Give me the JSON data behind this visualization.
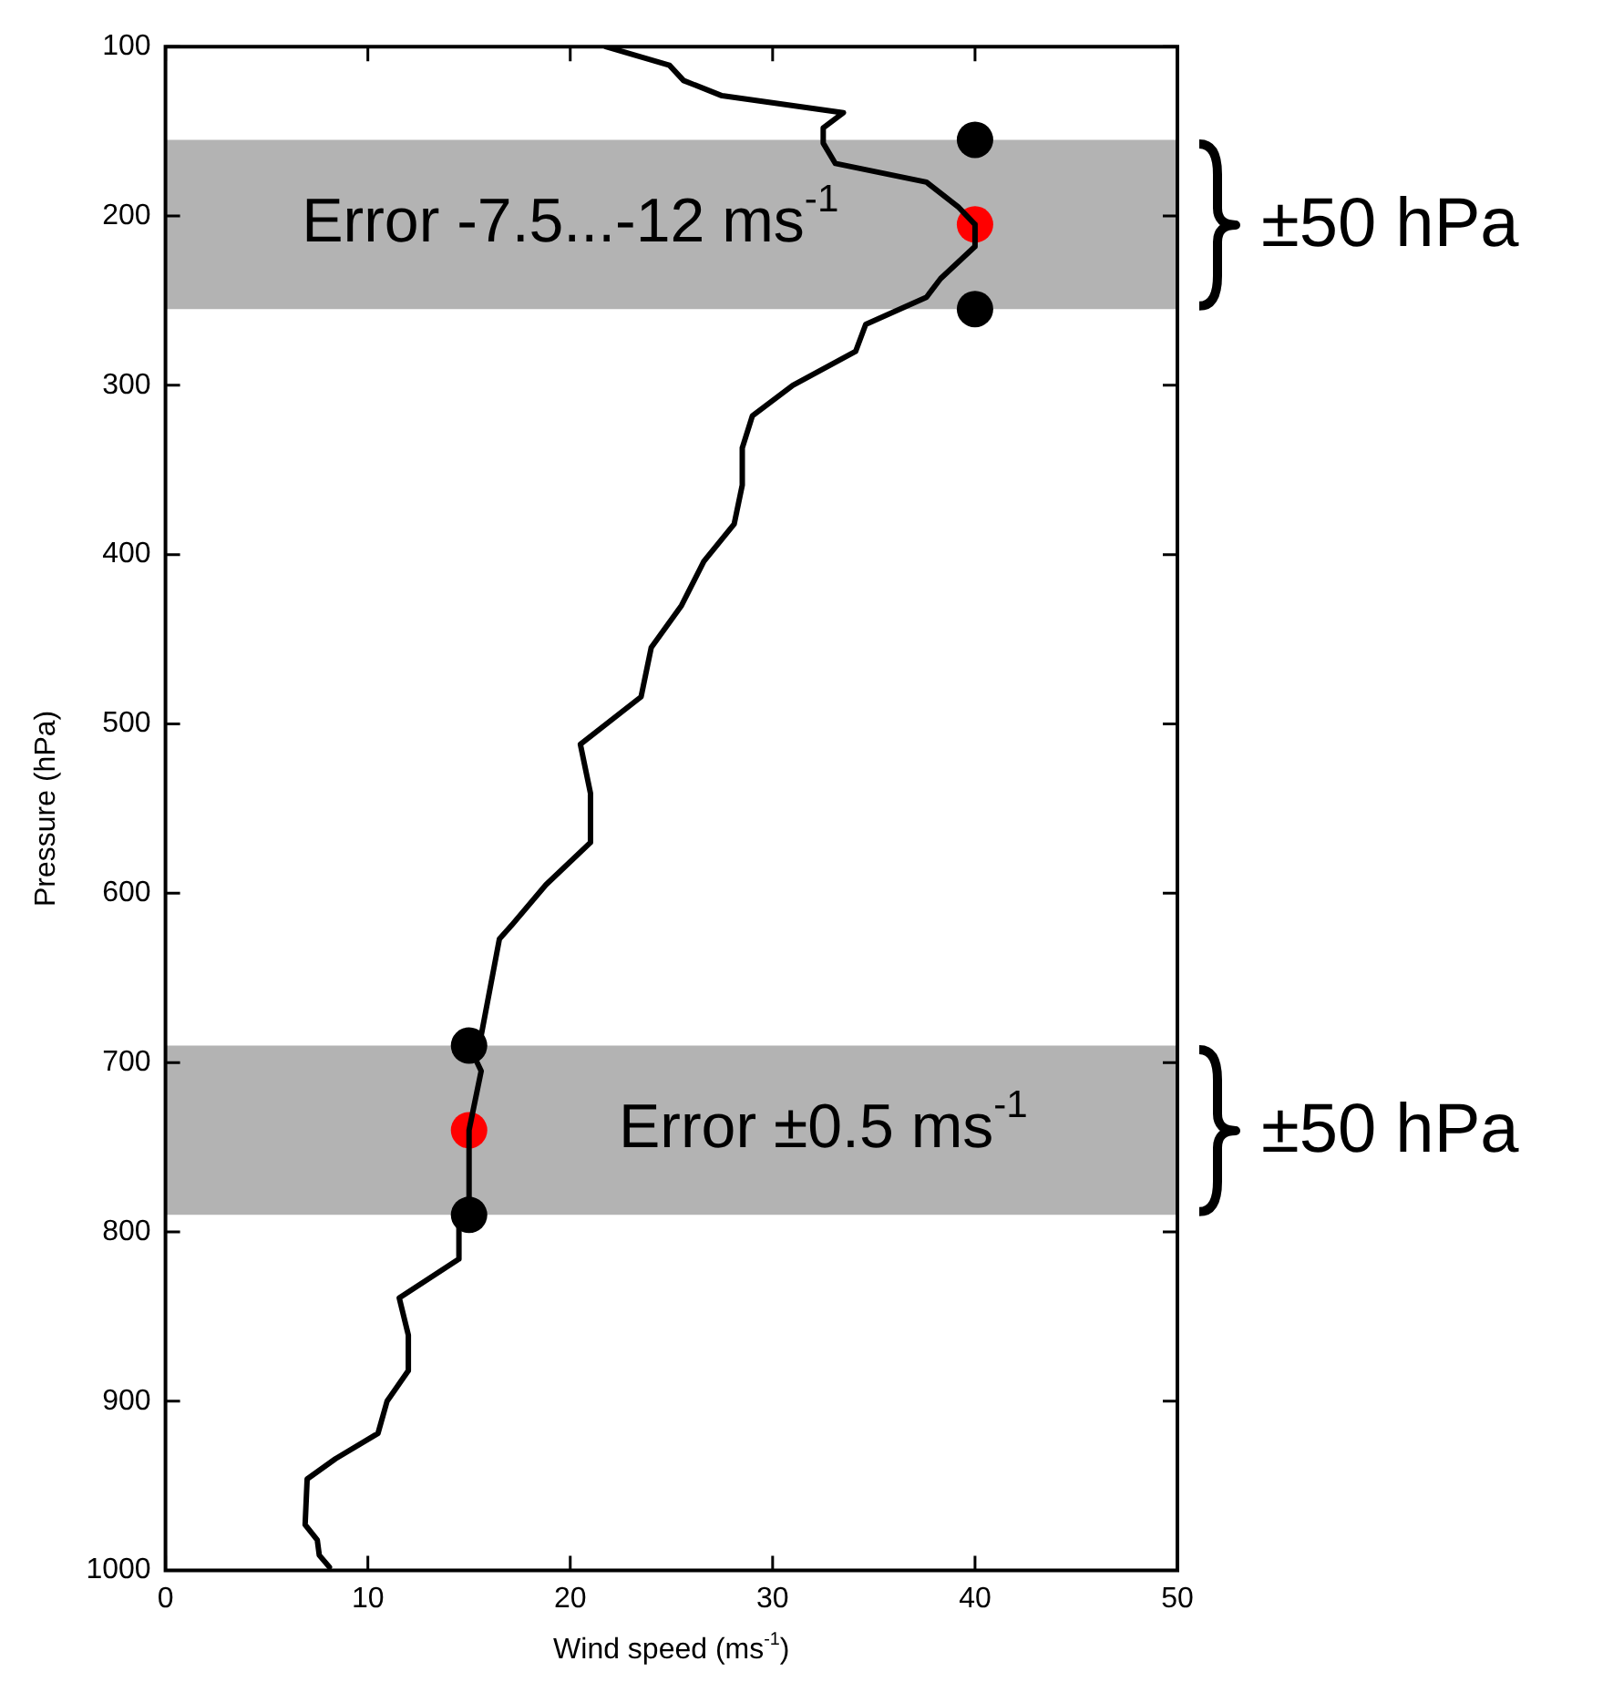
{
  "chart_data": {
    "type": "line",
    "xlabel": "Wind speed (ms$^{-1}$)",
    "ylabel": "Pressure (hPa)",
    "xlim": [
      0,
      50
    ],
    "xticks": [
      0,
      10,
      20,
      30,
      40,
      50
    ],
    "ylim": [
      1000,
      100
    ],
    "yticks": [
      100,
      200,
      300,
      400,
      500,
      600,
      700,
      800,
      900,
      1000
    ],
    "bands": [
      {
        "axis": "y",
        "from": 155,
        "to": 255,
        "label": "Error -7.5...-12 ms$^{-1}$",
        "color": "#b3b3b3"
      },
      {
        "axis": "y",
        "from": 690,
        "to": 790,
        "label": "Error ±0.5 ms$^{-1}$",
        "color": "#b3b3b3"
      }
    ],
    "annotations": [
      "±50 hPa",
      "±50 hPa"
    ],
    "series": [
      {
        "color": "#000000",
        "marker": "none",
        "x": [
          21.75,
          24.9,
          25.6,
          27.5,
          33.5,
          32.5,
          32.5,
          33.1,
          37.6,
          39.2,
          40,
          40,
          38.3,
          37.6,
          34.6,
          34.1,
          31,
          29,
          28.5,
          28.5,
          28.1,
          26.6,
          25.5,
          24,
          23.5,
          20.5,
          21,
          21,
          18.8,
          17.1,
          16.5,
          15.6,
          15,
          15.6,
          15,
          15,
          14.5,
          14.5,
          11.55,
          12,
          12,
          10.95,
          10.5,
          8.4,
          7,
          6.9,
          7.5,
          7.6,
          8.1
        ],
        "values": [
          100,
          111,
          120,
          129,
          139,
          148,
          157,
          169,
          180,
          195,
          205,
          218,
          237,
          248,
          264,
          280,
          300,
          318,
          337,
          359,
          382,
          404,
          430,
          455,
          484,
          512,
          541,
          570,
          595,
          619,
          627,
          684,
          690,
          705,
          740,
          790,
          798,
          816,
          839,
          861,
          882,
          900,
          919,
          934,
          946,
          973,
          982,
          991,
          998
        ]
      },
      {
        "type": "scatter",
        "color": "#000000",
        "marker": "circle",
        "x": [
          40,
          40,
          15,
          15
        ],
        "values": [
          155,
          255,
          690,
          790
        ]
      },
      {
        "type": "scatter",
        "color": "#ff0000",
        "marker": "circle",
        "x": [
          40,
          15
        ],
        "values": [
          205,
          740
        ]
      }
    ]
  }
}
